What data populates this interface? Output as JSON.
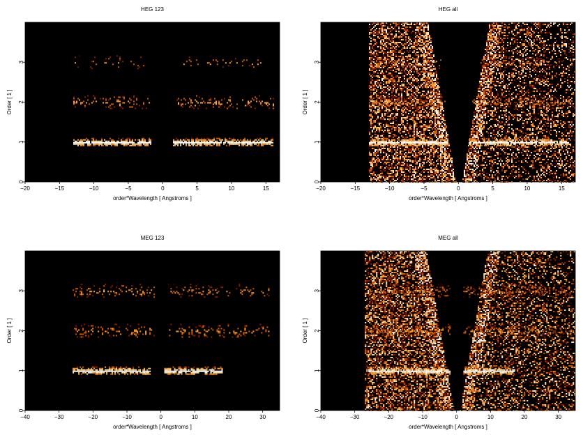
{
  "chart_data": [
    {
      "type": "heatmap",
      "title": "HEG 123",
      "xlabel": "order*Wavelength [ Angstroms ]",
      "ylabel": "Order [ 1 ]",
      "xlim": [
        -20,
        17
      ],
      "ylim": [
        0,
        4
      ],
      "xticks": [
        -20,
        -15,
        -10,
        -5,
        0,
        5,
        10,
        15
      ],
      "yticks": [
        0,
        1,
        2,
        3
      ],
      "background": "#000000",
      "colormap": [
        "#3a0000",
        "#8a1a00",
        "#d45a00",
        "#ffa030",
        "#ffe0a0",
        "#ffffff"
      ],
      "bands": [
        {
          "order": 1,
          "x_ranges": [
            [
              -13,
              -1.8
            ],
            [
              1.5,
              16
            ]
          ],
          "intensity": 0.95,
          "density": 0.95
        },
        {
          "order": 2,
          "x_ranges": [
            [
              -13,
              -2
            ],
            [
              2,
              16
            ]
          ],
          "intensity": 0.55,
          "density": 0.22
        },
        {
          "order": 3,
          "x_ranges": [
            [
              -13,
              -2.5
            ],
            [
              3,
              15
            ]
          ],
          "intensity": 0.5,
          "density": 0.1
        }
      ],
      "wedge": false
    },
    {
      "type": "heatmap",
      "title": "HEG all",
      "xlabel": "order*Wavelength [ Angstroms ]",
      "ylabel": "Order [ 1 ]",
      "xlim": [
        -20,
        17
      ],
      "ylim": [
        0,
        4
      ],
      "xticks": [
        -20,
        -15,
        -10,
        -5,
        0,
        5,
        10,
        15
      ],
      "yticks": [
        0,
        1,
        2,
        3
      ],
      "background": "#000000",
      "colormap": [
        "#3a0000",
        "#8a1a00",
        "#d45a00",
        "#ffa030",
        "#ffe0a0",
        "#ffffff"
      ],
      "bands": [
        {
          "order": 1,
          "x_ranges": [
            [
              -13,
              -1.5
            ],
            [
              1.5,
              16
            ]
          ],
          "intensity": 0.95,
          "density": 0.95
        },
        {
          "order": 2,
          "x_ranges": [
            [
              -13,
              -2
            ],
            [
              2,
              16
            ]
          ],
          "intensity": 0.5,
          "density": 0.3
        },
        {
          "order": 3,
          "x_ranges": [
            [
              -13,
              -2.5
            ],
            [
              3,
              15
            ]
          ],
          "intensity": 0.45,
          "density": 0.2
        }
      ],
      "wedge": true,
      "data_xlim": [
        -13,
        17
      ]
    },
    {
      "type": "heatmap",
      "title": "MEG 123",
      "xlabel": "order*Wavelength [ Angstroms ]",
      "ylabel": "Order [ 1 ]",
      "xlim": [
        -40,
        35
      ],
      "ylim": [
        0,
        4
      ],
      "xticks": [
        -40,
        -30,
        -20,
        -10,
        0,
        10,
        20,
        30
      ],
      "yticks": [
        0,
        1,
        2,
        3
      ],
      "background": "#000000",
      "colormap": [
        "#3a0000",
        "#8a1a00",
        "#d45a00",
        "#ffa030",
        "#ffe0a0",
        "#ffffff"
      ],
      "bands": [
        {
          "order": 1,
          "x_ranges": [
            [
              -26,
              -3
            ],
            [
              1,
              18
            ]
          ],
          "intensity": 0.95,
          "density": 0.95
        },
        {
          "order": 2,
          "x_ranges": [
            [
              -26,
              -2
            ],
            [
              2,
              32
            ]
          ],
          "intensity": 0.55,
          "density": 0.25
        },
        {
          "order": 3,
          "x_ranges": [
            [
              -26,
              -2
            ],
            [
              2,
              32
            ]
          ],
          "intensity": 0.55,
          "density": 0.2
        }
      ],
      "wedge": false
    },
    {
      "type": "heatmap",
      "title": "MEG all",
      "xlabel": "order*Wavelength [ Angstroms ]",
      "ylabel": "Order [ 1 ]",
      "xlim": [
        -40,
        35
      ],
      "ylim": [
        0,
        4
      ],
      "xticks": [
        -40,
        -30,
        -20,
        -10,
        0,
        10,
        20,
        30
      ],
      "yticks": [
        0,
        1,
        2,
        3
      ],
      "background": "#000000",
      "colormap": [
        "#3a0000",
        "#8a1a00",
        "#d45a00",
        "#ffa030",
        "#ffe0a0",
        "#ffffff"
      ],
      "bands": [
        {
          "order": 1,
          "x_ranges": [
            [
              -26,
              -2
            ],
            [
              2,
              17
            ]
          ],
          "intensity": 0.95,
          "density": 0.95
        },
        {
          "order": 2,
          "x_ranges": [
            [
              -26,
              -2
            ],
            [
              2,
              34
            ]
          ],
          "intensity": 0.5,
          "density": 0.3
        },
        {
          "order": 3,
          "x_ranges": [
            [
              -26,
              -2
            ],
            [
              2,
              34
            ]
          ],
          "intensity": 0.45,
          "density": 0.25
        }
      ],
      "wedge": true,
      "data_xlim": [
        -27,
        35
      ]
    }
  ]
}
